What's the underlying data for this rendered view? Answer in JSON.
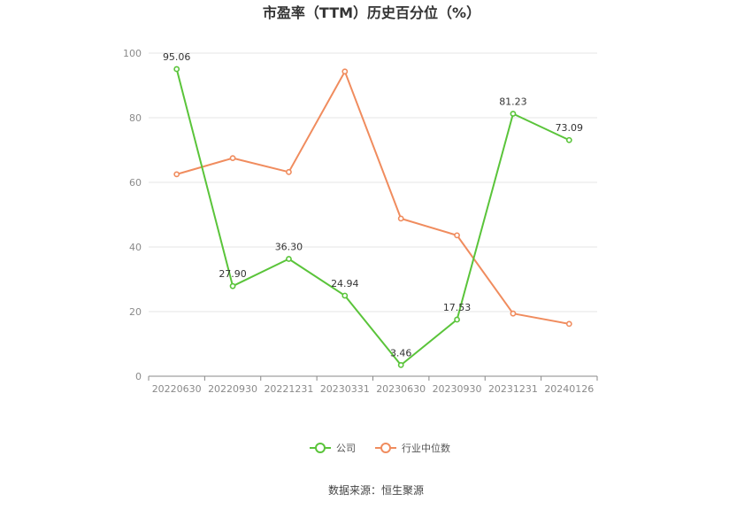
{
  "chart_data": {
    "type": "line",
    "title": "市盈率（TTM）历史百分位（%）",
    "categories": [
      "20220630",
      "20220930",
      "20221231",
      "20230331",
      "20230630",
      "20230930",
      "20231231",
      "20240126"
    ],
    "ylim": [
      0,
      100
    ],
    "yticks": [
      0,
      20,
      40,
      60,
      80,
      100
    ],
    "grid": true,
    "legend_position": "bottom",
    "series": [
      {
        "name": "公司",
        "color": "#5ac43a",
        "values": [
          95.06,
          27.9,
          36.3,
          24.94,
          3.46,
          17.53,
          81.23,
          73.09
        ],
        "labels": [
          "95.06",
          "27.90",
          "36.30",
          "24.94",
          "3.46",
          "17.53",
          "81.23",
          "73.09"
        ]
      },
      {
        "name": "行业中位数",
        "color": "#f08c5e",
        "values": [
          62.5,
          67.5,
          63.2,
          94.3,
          48.8,
          43.6,
          19.4,
          16.2
        ]
      }
    ],
    "source": "数据来源：恒生聚源"
  }
}
